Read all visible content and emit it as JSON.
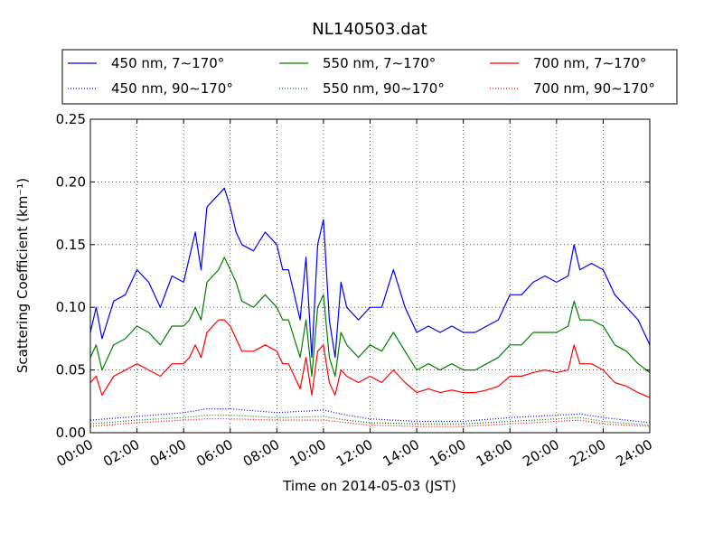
{
  "chart_data": {
    "type": "line",
    "title": "NL140503.dat",
    "xlabel": "Time on 2014-05-03 (JST)",
    "ylabel": "Scattering Coefficient (km⁻¹)",
    "xlim": [
      "00:00",
      "24:00"
    ],
    "ylim": [
      0.0,
      0.25
    ],
    "x_ticks": [
      "00:00",
      "02:00",
      "04:00",
      "06:00",
      "08:00",
      "10:00",
      "12:00",
      "14:00",
      "16:00",
      "18:00",
      "20:00",
      "22:00",
      "24:00"
    ],
    "y_ticks": [
      "0.00",
      "0.05",
      "0.10",
      "0.15",
      "0.20",
      "0.25"
    ],
    "grid": true,
    "legend_position": "top",
    "series": [
      {
        "name": "450 nm, 7∼170°",
        "color": "#0000ff",
        "style": "solid",
        "x": [
          "00:00",
          "00:15",
          "00:30",
          "01:00",
          "01:30",
          "02:00",
          "02:30",
          "03:00",
          "03:30",
          "04:00",
          "04:15",
          "04:30",
          "04:45",
          "05:00",
          "05:15",
          "05:30",
          "05:45",
          "06:00",
          "06:15",
          "06:30",
          "07:00",
          "07:30",
          "08:00",
          "08:15",
          "08:30",
          "08:45",
          "09:00",
          "09:15",
          "09:30",
          "09:45",
          "10:00",
          "10:15",
          "10:30",
          "10:45",
          "11:00",
          "11:30",
          "12:00",
          "12:30",
          "13:00",
          "13:30",
          "14:00",
          "14:30",
          "15:00",
          "15:30",
          "16:00",
          "16:30",
          "17:00",
          "17:30",
          "18:00",
          "18:30",
          "19:00",
          "19:30",
          "20:00",
          "20:30",
          "20:45",
          "21:00",
          "21:30",
          "22:00",
          "22:30",
          "23:00",
          "23:30",
          "24:00"
        ],
        "y": [
          0.08,
          0.1,
          0.075,
          0.105,
          0.11,
          0.13,
          0.12,
          0.1,
          0.125,
          0.12,
          0.14,
          0.16,
          0.13,
          0.18,
          0.185,
          0.19,
          0.195,
          0.18,
          0.16,
          0.15,
          0.145,
          0.16,
          0.15,
          0.13,
          0.13,
          0.11,
          0.09,
          0.14,
          0.06,
          0.15,
          0.17,
          0.09,
          0.06,
          0.12,
          0.1,
          0.09,
          0.1,
          0.1,
          0.13,
          0.1,
          0.08,
          0.085,
          0.08,
          0.085,
          0.08,
          0.08,
          0.085,
          0.09,
          0.11,
          0.11,
          0.12,
          0.125,
          0.12,
          0.125,
          0.15,
          0.13,
          0.135,
          0.13,
          0.11,
          0.1,
          0.09,
          0.07
        ]
      },
      {
        "name": "450 nm, 90∼170°",
        "color": "#0000ff",
        "style": "dotted",
        "x": [
          "00:00",
          "02:00",
          "04:00",
          "05:00",
          "06:00",
          "08:00",
          "10:00",
          "11:00",
          "12:00",
          "14:00",
          "16:00",
          "18:00",
          "20:00",
          "21:00",
          "22:00",
          "24:00"
        ],
        "y": [
          0.01,
          0.013,
          0.016,
          0.019,
          0.019,
          0.016,
          0.018,
          0.014,
          0.011,
          0.009,
          0.009,
          0.012,
          0.014,
          0.015,
          0.012,
          0.008
        ]
      },
      {
        "name": "550 nm, 7∼170°",
        "color": "#008000",
        "style": "solid",
        "x": [
          "00:00",
          "00:15",
          "00:30",
          "01:00",
          "01:30",
          "02:00",
          "02:30",
          "03:00",
          "03:30",
          "04:00",
          "04:15",
          "04:30",
          "04:45",
          "05:00",
          "05:15",
          "05:30",
          "05:45",
          "06:00",
          "06:15",
          "06:30",
          "07:00",
          "07:30",
          "08:00",
          "08:15",
          "08:30",
          "08:45",
          "09:00",
          "09:15",
          "09:30",
          "09:45",
          "10:00",
          "10:15",
          "10:30",
          "10:45",
          "11:00",
          "11:30",
          "12:00",
          "12:30",
          "13:00",
          "13:30",
          "14:00",
          "14:30",
          "15:00",
          "15:30",
          "16:00",
          "16:30",
          "17:00",
          "17:30",
          "18:00",
          "18:30",
          "19:00",
          "19:30",
          "20:00",
          "20:30",
          "20:45",
          "21:00",
          "21:30",
          "22:00",
          "22:30",
          "23:00",
          "23:30",
          "24:00"
        ],
        "y": [
          0.06,
          0.07,
          0.05,
          0.07,
          0.075,
          0.085,
          0.08,
          0.07,
          0.085,
          0.085,
          0.09,
          0.1,
          0.09,
          0.12,
          0.125,
          0.13,
          0.14,
          0.13,
          0.12,
          0.105,
          0.1,
          0.11,
          0.1,
          0.09,
          0.09,
          0.075,
          0.06,
          0.09,
          0.045,
          0.1,
          0.11,
          0.06,
          0.045,
          0.08,
          0.07,
          0.06,
          0.07,
          0.065,
          0.08,
          0.065,
          0.05,
          0.055,
          0.05,
          0.055,
          0.05,
          0.05,
          0.055,
          0.06,
          0.07,
          0.07,
          0.08,
          0.08,
          0.08,
          0.085,
          0.105,
          0.09,
          0.09,
          0.085,
          0.07,
          0.065,
          0.055,
          0.048
        ]
      },
      {
        "name": "550 nm, 90∼170°",
        "color": "#008000",
        "style": "dotted",
        "x": [
          "00:00",
          "02:00",
          "04:00",
          "05:00",
          "06:00",
          "08:00",
          "10:00",
          "11:00",
          "12:00",
          "14:00",
          "16:00",
          "18:00",
          "20:00",
          "21:00",
          "22:00",
          "24:00"
        ],
        "y": [
          0.007,
          0.01,
          0.012,
          0.014,
          0.014,
          0.012,
          0.013,
          0.01,
          0.008,
          0.007,
          0.007,
          0.009,
          0.011,
          0.012,
          0.009,
          0.006
        ]
      },
      {
        "name": "700 nm, 7∼170°",
        "color": "#ff0000",
        "style": "solid",
        "x": [
          "00:00",
          "00:15",
          "00:30",
          "01:00",
          "01:30",
          "02:00",
          "02:30",
          "03:00",
          "03:30",
          "04:00",
          "04:15",
          "04:30",
          "04:45",
          "05:00",
          "05:15",
          "05:30",
          "05:45",
          "06:00",
          "06:15",
          "06:30",
          "07:00",
          "07:30",
          "08:00",
          "08:15",
          "08:30",
          "08:45",
          "09:00",
          "09:15",
          "09:30",
          "09:45",
          "10:00",
          "10:15",
          "10:30",
          "10:45",
          "11:00",
          "11:30",
          "12:00",
          "12:30",
          "13:00",
          "13:30",
          "14:00",
          "14:30",
          "15:00",
          "15:30",
          "16:00",
          "16:30",
          "17:00",
          "17:30",
          "18:00",
          "18:30",
          "19:00",
          "19:30",
          "20:00",
          "20:30",
          "20:45",
          "21:00",
          "21:30",
          "22:00",
          "22:30",
          "23:00",
          "23:30",
          "24:00"
        ],
        "y": [
          0.04,
          0.045,
          0.03,
          0.045,
          0.05,
          0.055,
          0.05,
          0.045,
          0.055,
          0.055,
          0.06,
          0.07,
          0.06,
          0.08,
          0.085,
          0.09,
          0.09,
          0.085,
          0.075,
          0.065,
          0.065,
          0.07,
          0.065,
          0.055,
          0.055,
          0.045,
          0.035,
          0.06,
          0.03,
          0.065,
          0.07,
          0.04,
          0.03,
          0.05,
          0.045,
          0.04,
          0.045,
          0.04,
          0.05,
          0.04,
          0.032,
          0.035,
          0.032,
          0.034,
          0.032,
          0.032,
          0.034,
          0.037,
          0.045,
          0.045,
          0.048,
          0.05,
          0.048,
          0.05,
          0.07,
          0.055,
          0.055,
          0.05,
          0.04,
          0.037,
          0.032,
          0.028
        ]
      },
      {
        "name": "700 nm, 90∼170°",
        "color": "#ff0000",
        "style": "dotted",
        "x": [
          "00:00",
          "02:00",
          "04:00",
          "05:00",
          "06:00",
          "08:00",
          "10:00",
          "11:00",
          "12:00",
          "14:00",
          "16:00",
          "18:00",
          "20:00",
          "21:00",
          "22:00",
          "24:00"
        ],
        "y": [
          0.005,
          0.008,
          0.01,
          0.011,
          0.011,
          0.01,
          0.01,
          0.008,
          0.006,
          0.005,
          0.005,
          0.007,
          0.009,
          0.01,
          0.007,
          0.005
        ]
      }
    ]
  }
}
